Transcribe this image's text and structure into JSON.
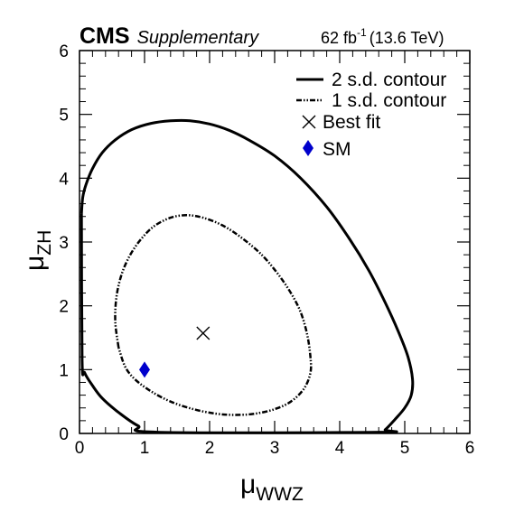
{
  "header": {
    "experiment": "CMS",
    "label": "Supplementary",
    "lumi_value": "62 fb",
    "lumi_exponent": "-1",
    "lumi_energy": "(13.6 TeV)"
  },
  "chart_data": {
    "type": "contour",
    "xlabel": {
      "symbol": "μ",
      "subscript": "WWZ"
    },
    "ylabel": {
      "symbol": "μ",
      "subscript": "ZH"
    },
    "xlim": [
      0,
      6
    ],
    "ylim": [
      0,
      6
    ],
    "xticks": [
      0,
      1,
      2,
      3,
      4,
      5,
      6
    ],
    "yticks": [
      0,
      1,
      2,
      3,
      4,
      5,
      6
    ],
    "grid": false,
    "legend_position": "top-right",
    "legend": [
      {
        "key": "contour_2sd",
        "label": "2 s.d. contour"
      },
      {
        "key": "contour_1sd",
        "label": "1 s.d. contour"
      },
      {
        "key": "best_fit",
        "label": "Best fit"
      },
      {
        "key": "sm",
        "label": "SM"
      }
    ],
    "contour_2sd": [
      [
        0.03,
        3.45
      ],
      [
        0.05,
        3.7
      ],
      [
        0.1,
        3.9
      ],
      [
        0.2,
        4.15
      ],
      [
        0.35,
        4.4
      ],
      [
        0.55,
        4.6
      ],
      [
        0.8,
        4.76
      ],
      [
        1.1,
        4.86
      ],
      [
        1.4,
        4.9
      ],
      [
        1.7,
        4.9
      ],
      [
        2.0,
        4.85
      ],
      [
        2.3,
        4.75
      ],
      [
        2.6,
        4.6
      ],
      [
        3.0,
        4.35
      ],
      [
        3.4,
        4.0
      ],
      [
        3.8,
        3.55
      ],
      [
        4.15,
        3.05
      ],
      [
        4.45,
        2.55
      ],
      [
        4.7,
        2.05
      ],
      [
        4.9,
        1.6
      ],
      [
        5.05,
        1.2
      ],
      [
        5.12,
        0.85
      ],
      [
        5.1,
        0.6
      ],
      [
        5.0,
        0.4
      ],
      [
        4.85,
        0.22
      ],
      [
        4.7,
        0.06
      ],
      [
        4.6,
        0.02
      ],
      [
        1.2,
        0.02
      ],
      [
        0.9,
        0.12
      ],
      [
        0.6,
        0.33
      ],
      [
        0.35,
        0.55
      ],
      [
        0.2,
        0.75
      ],
      [
        0.08,
        0.95
      ],
      [
        0.04,
        1.15
      ],
      [
        0.03,
        3.45
      ]
    ],
    "contour_1sd": [
      [
        0.6,
        1.35
      ],
      [
        0.55,
        1.75
      ],
      [
        0.57,
        2.15
      ],
      [
        0.65,
        2.5
      ],
      [
        0.78,
        2.8
      ],
      [
        0.95,
        3.05
      ],
      [
        1.15,
        3.25
      ],
      [
        1.4,
        3.38
      ],
      [
        1.65,
        3.42
      ],
      [
        1.9,
        3.38
      ],
      [
        2.2,
        3.26
      ],
      [
        2.5,
        3.06
      ],
      [
        2.8,
        2.8
      ],
      [
        3.05,
        2.5
      ],
      [
        3.25,
        2.2
      ],
      [
        3.4,
        1.9
      ],
      [
        3.5,
        1.55
      ],
      [
        3.55,
        1.2
      ],
      [
        3.55,
        0.95
      ],
      [
        3.45,
        0.7
      ],
      [
        3.25,
        0.5
      ],
      [
        3.0,
        0.38
      ],
      [
        2.7,
        0.31
      ],
      [
        2.4,
        0.29
      ],
      [
        2.1,
        0.31
      ],
      [
        1.75,
        0.38
      ],
      [
        1.4,
        0.5
      ],
      [
        1.1,
        0.66
      ],
      [
        0.85,
        0.85
      ],
      [
        0.7,
        1.05
      ],
      [
        0.6,
        1.35
      ]
    ],
    "best_fit": {
      "x": 1.9,
      "y": 1.57
    },
    "sm": {
      "x": 1.0,
      "y": 1.0
    },
    "colors": {
      "sm": "#0000cc",
      "line": "#000000"
    }
  }
}
